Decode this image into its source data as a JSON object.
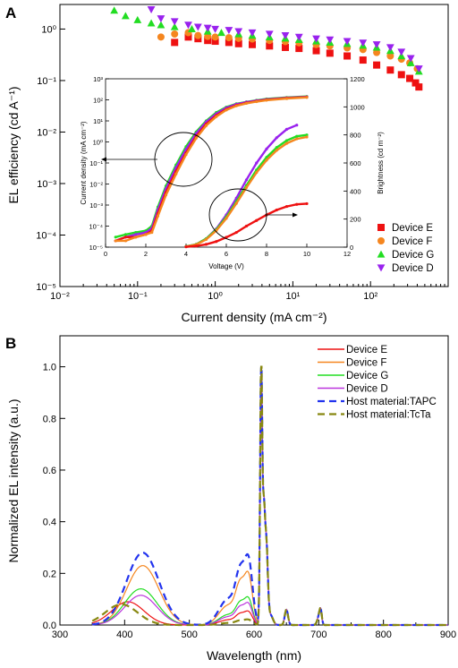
{
  "chart_data": [
    {
      "panel": "A",
      "type": "scatter",
      "xlabel": "Current density (mA cm⁻²)",
      "ylabel": "EL efficiency (cd A⁻¹)",
      "x_scale": "log",
      "y_scale": "log",
      "xlim": [
        0.01,
        1000
      ],
      "ylim": [
        1e-05,
        3
      ],
      "x_ticks": [
        "10⁻²",
        "10⁻¹",
        "10⁰",
        "10¹",
        "10²"
      ],
      "y_ticks": [
        "10⁻⁵",
        "10⁻⁴",
        "10⁻³",
        "10⁻²",
        "10⁻¹",
        "10⁰"
      ],
      "legend_position": "bottom-right",
      "series": [
        {
          "name": "Device E",
          "marker": "square",
          "color": "#ee1111",
          "x": [
            0.3,
            0.45,
            0.6,
            0.8,
            1,
            1.5,
            2,
            3,
            5,
            8,
            12,
            20,
            30,
            50,
            80,
            120,
            180,
            250,
            320,
            380,
            420
          ],
          "y": [
            0.55,
            0.7,
            0.65,
            0.6,
            0.58,
            0.55,
            0.52,
            0.5,
            0.47,
            0.44,
            0.42,
            0.38,
            0.34,
            0.3,
            0.25,
            0.2,
            0.16,
            0.13,
            0.11,
            0.09,
            0.075
          ]
        },
        {
          "name": "Device F",
          "marker": "circle",
          "color": "#f5861f",
          "x": [
            0.2,
            0.3,
            0.45,
            0.6,
            0.8,
            1,
            1.5,
            2,
            3,
            5,
            8,
            12,
            20,
            30,
            50,
            80,
            120,
            180,
            250,
            320,
            400
          ],
          "y": [
            0.7,
            0.8,
            0.85,
            0.75,
            0.72,
            0.7,
            0.68,
            0.66,
            0.64,
            0.6,
            0.57,
            0.54,
            0.5,
            0.47,
            0.43,
            0.4,
            0.35,
            0.3,
            0.26,
            0.22,
            0.17
          ]
        },
        {
          "name": "Device G",
          "marker": "triangle-up",
          "color": "#22dd22",
          "x": [
            0.05,
            0.07,
            0.1,
            0.15,
            0.2,
            0.3,
            0.5,
            0.8,
            1.2,
            2,
            3,
            5,
            8,
            12,
            20,
            30,
            50,
            80,
            120,
            180,
            250,
            330,
            420
          ],
          "y": [
            2.3,
            1.8,
            1.5,
            1.3,
            1.2,
            1.1,
            1.0,
            0.9,
            0.85,
            0.8,
            0.75,
            0.7,
            0.66,
            0.62,
            0.58,
            0.55,
            0.52,
            0.48,
            0.44,
            0.38,
            0.3,
            0.22,
            0.15
          ]
        },
        {
          "name": "Device D",
          "marker": "triangle-down",
          "color": "#9922ee",
          "x": [
            0.15,
            0.2,
            0.3,
            0.45,
            0.6,
            0.8,
            1,
            1.5,
            2,
            3,
            5,
            8,
            12,
            20,
            30,
            50,
            80,
            120,
            180,
            250,
            330,
            420
          ],
          "y": [
            2.4,
            1.6,
            1.4,
            1.2,
            1.1,
            1.05,
            1.0,
            0.95,
            0.9,
            0.85,
            0.8,
            0.75,
            0.7,
            0.65,
            0.62,
            0.58,
            0.54,
            0.5,
            0.44,
            0.36,
            0.27,
            0.17
          ]
        }
      ],
      "inset": {
        "xlabel": "Voltage (V)",
        "ylabel_left": "Current density (mA cm⁻²)",
        "ylabel_right": "Brightness (cd m⁻²)",
        "xlim": [
          0,
          12
        ],
        "ylim_left_log": [
          1e-05,
          1000
        ],
        "ylim_right": [
          0,
          1200
        ],
        "x_ticks": [
          "0",
          "2",
          "4",
          "6",
          "8",
          "10",
          "12"
        ],
        "y_left_ticks": [
          "10⁻⁵",
          "10⁻⁴",
          "10⁻³",
          "10⁻²",
          "10⁻¹",
          "10⁰",
          "10¹",
          "10²",
          "10³"
        ],
        "y_right_ticks": [
          "0",
          "200",
          "400",
          "600",
          "800",
          "1000",
          "1200"
        ],
        "current_density_curves": [
          {
            "color": "#22dd22",
            "voltage": [
              0.5,
              1,
              1.5,
              2,
              2.3,
              2.6,
              3,
              3.5,
              4,
              4.5,
              5,
              5.5,
              6,
              6.5,
              7,
              7.5,
              8,
              9,
              10
            ],
            "value": [
              3e-05,
              4e-05,
              5e-05,
              6e-05,
              0.0001,
              0.0008,
              0.008,
              0.08,
              0.6,
              3,
              10,
              25,
              45,
              65,
              80,
              95,
              110,
              130,
              145
            ]
          },
          {
            "color": "#9922ee",
            "voltage": [
              0.5,
              1,
              1.5,
              2,
              2.3,
              2.6,
              3,
              3.5,
              4,
              4.5,
              5,
              5.5,
              6,
              6.5,
              7,
              7.5,
              8,
              9,
              10
            ],
            "value": [
              2e-05,
              3e-05,
              4e-05,
              5e-05,
              8e-05,
              0.0006,
              0.006,
              0.06,
              0.45,
              2.5,
              9,
              22,
              42,
              62,
              78,
              92,
              105,
              125,
              140
            ]
          },
          {
            "color": "#ee1111",
            "voltage": [
              0.5,
              1,
              1.5,
              2,
              2.3,
              2.6,
              3,
              3.5,
              4,
              4.5,
              5,
              5.5,
              6,
              6.5,
              7,
              7.5,
              8,
              9,
              10
            ],
            "value": [
              2e-05,
              3e-05,
              3e-05,
              4e-05,
              6e-05,
              0.0004,
              0.004,
              0.04,
              0.3,
              1.8,
              7,
              18,
              36,
              55,
              72,
              86,
              100,
              120,
              135
            ]
          },
          {
            "color": "#f5861f",
            "voltage": [
              0.5,
              1,
              1.5,
              2,
              2.3,
              2.6,
              3,
              3.5,
              4,
              4.5,
              5,
              5.5,
              6,
              6.5,
              7,
              7.5,
              8,
              9,
              10
            ],
            "value": [
              2e-05,
              2e-05,
              3e-05,
              4e-05,
              5e-05,
              0.0003,
              0.003,
              0.03,
              0.25,
              1.5,
              6,
              16,
              33,
              52,
              68,
              82,
              96,
              115,
              130
            ]
          }
        ],
        "brightness_curves": [
          {
            "color": "#9922ee",
            "voltage": [
              4,
              4.5,
              5,
              5.5,
              6,
              6.5,
              7,
              7.5,
              8,
              8.5,
              9,
              9.5
            ],
            "value": [
              5,
              20,
              60,
              130,
              230,
              350,
              480,
              600,
              700,
              780,
              840,
              870
            ]
          },
          {
            "color": "#22dd22",
            "voltage": [
              4,
              4.5,
              5,
              5.5,
              6,
              6.5,
              7,
              7.5,
              8,
              8.5,
              9,
              9.5,
              10
            ],
            "value": [
              5,
              20,
              60,
              125,
              215,
              325,
              440,
              550,
              640,
              710,
              760,
              790,
              800
            ]
          },
          {
            "color": "#f5861f",
            "voltage": [
              4,
              4.5,
              5,
              5.5,
              6,
              6.5,
              7,
              7.5,
              8,
              8.5,
              9,
              9.5,
              10
            ],
            "value": [
              4,
              18,
              55,
              118,
              205,
              312,
              425,
              532,
              620,
              690,
              740,
              772,
              785
            ]
          },
          {
            "color": "#ee1111",
            "voltage": [
              4,
              4.5,
              5,
              5.5,
              6,
              6.5,
              7,
              7.5,
              8,
              8.5,
              9,
              9.5,
              10
            ],
            "value": [
              2,
              8,
              20,
              40,
              70,
              105,
              150,
              190,
              230,
              265,
              290,
              305,
              310
            ]
          }
        ]
      }
    },
    {
      "panel": "B",
      "type": "line",
      "xlabel": "Wavelength (nm)",
      "ylabel": "Normalized EL intensity (a.u.)",
      "xlim": [
        300,
        900
      ],
      "ylim": [
        0,
        1.12
      ],
      "x_ticks": [
        "300",
        "400",
        "500",
        "600",
        "700",
        "800",
        "900"
      ],
      "y_ticks": [
        "0.0",
        "0.2",
        "0.4",
        "0.6",
        "0.8",
        "1.0"
      ],
      "legend_position": "top-right",
      "series": [
        {
          "name": "Device E",
          "color": "#ee1111",
          "dash": "solid",
          "blue_peak": 0.09,
          "blue_center": 405,
          "green_peak": 0.05
        },
        {
          "name": "Device F",
          "color": "#f5861f",
          "dash": "solid",
          "blue_peak": 0.23,
          "blue_center": 428,
          "green_peak": 0.19
        },
        {
          "name": "Device G",
          "color": "#22dd22",
          "dash": "solid",
          "blue_peak": 0.14,
          "blue_center": 425,
          "green_peak": 0.1
        },
        {
          "name": "Device D",
          "color": "#bb33dd",
          "dash": "solid",
          "blue_peak": 0.115,
          "blue_center": 425,
          "green_peak": 0.08
        },
        {
          "name": "Host material:TAPC",
          "color": "#2233ee",
          "dash": "dashed",
          "blue_peak": 0.28,
          "blue_center": 428,
          "green_peak": 0.25
        },
        {
          "name": "Host material:TcTa",
          "color": "#888811",
          "dash": "dashed",
          "blue_peak": 0.08,
          "blue_center": 395,
          "green_peak": 0.02
        }
      ],
      "common_peaks_nm": [
        579,
        592,
        611,
        615,
        618,
        650,
        700,
        703
      ],
      "main_peak": {
        "x": 611,
        "y": 1.0
      }
    }
  ],
  "panel_labels": {
    "a": "A",
    "b": "B"
  },
  "inset_annotations": {
    "left_arrow": "points to left axis",
    "right_arrow": "points to right axis"
  }
}
